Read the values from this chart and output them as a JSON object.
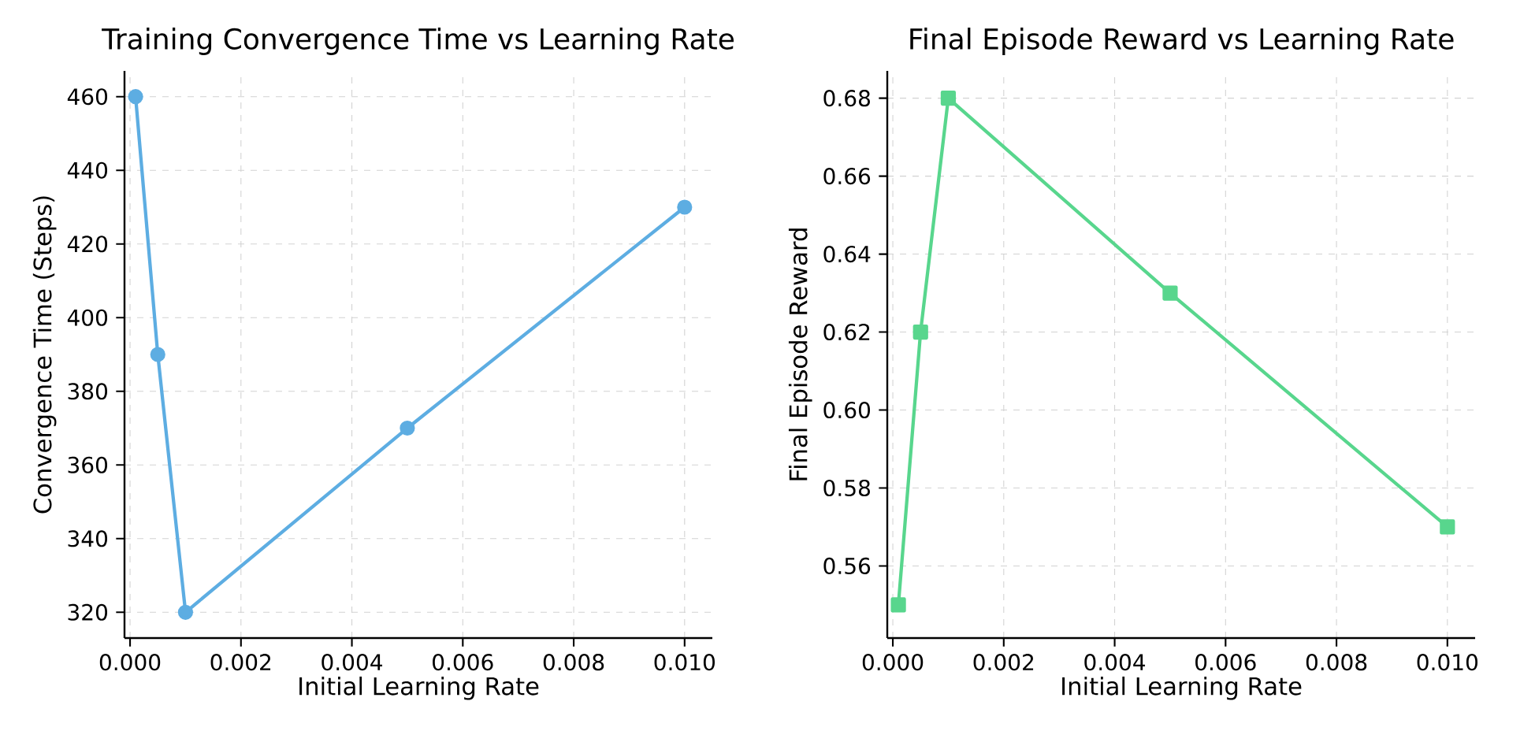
{
  "chart_data": [
    {
      "type": "line",
      "title": "Training Convergence Time vs Learning Rate",
      "xlabel": "Initial Learning Rate",
      "ylabel": "Convergence Time (Steps)",
      "x": [
        0.0001,
        0.0005,
        0.001,
        0.005,
        0.01
      ],
      "series": [
        {
          "color": "#5dade2",
          "values": [
            460,
            390,
            320,
            370,
            430
          ]
        }
      ],
      "xlim": [
        -0.0001,
        0.0105
      ],
      "ylim": [
        313,
        467
      ],
      "xticks": [
        {
          "value": 0,
          "label": "0.000"
        },
        {
          "value": 0.002,
          "label": "0.002"
        },
        {
          "value": 0.004,
          "label": "0.004"
        },
        {
          "value": 0.006,
          "label": "0.006"
        },
        {
          "value": 0.008,
          "label": "0.008"
        },
        {
          "value": 0.01,
          "label": "0.010"
        }
      ],
      "yticks": [
        320,
        340,
        360,
        380,
        400,
        420,
        440,
        460
      ],
      "grid": true,
      "marker": "circle"
    },
    {
      "type": "line",
      "title": "Final Episode Reward vs Learning Rate",
      "xlabel": "Initial Learning Rate",
      "ylabel": "Final Episode Reward",
      "x": [
        0.0001,
        0.0005,
        0.001,
        0.005,
        0.01
      ],
      "series": [
        {
          "color": "#58d68d",
          "values": [
            0.55,
            0.62,
            0.68,
            0.63,
            0.57
          ]
        }
      ],
      "xlim": [
        -0.0001,
        0.0105
      ],
      "ylim": [
        0.5415,
        0.687
      ],
      "xticks": [
        {
          "value": 0,
          "label": "0.000"
        },
        {
          "value": 0.002,
          "label": "0.002"
        },
        {
          "value": 0.004,
          "label": "0.004"
        },
        {
          "value": 0.006,
          "label": "0.006"
        },
        {
          "value": 0.008,
          "label": "0.008"
        },
        {
          "value": 0.01,
          "label": "0.010"
        }
      ],
      "yticks": [
        {
          "value": 0.56,
          "label": "0.56"
        },
        {
          "value": 0.58,
          "label": "0.58"
        },
        {
          "value": 0.6,
          "label": "0.60"
        },
        {
          "value": 0.62,
          "label": "0.62"
        },
        {
          "value": 0.64,
          "label": "0.64"
        },
        {
          "value": 0.66,
          "label": "0.66"
        },
        {
          "value": 0.68,
          "label": "0.68"
        }
      ],
      "grid": true,
      "marker": "square"
    }
  ]
}
